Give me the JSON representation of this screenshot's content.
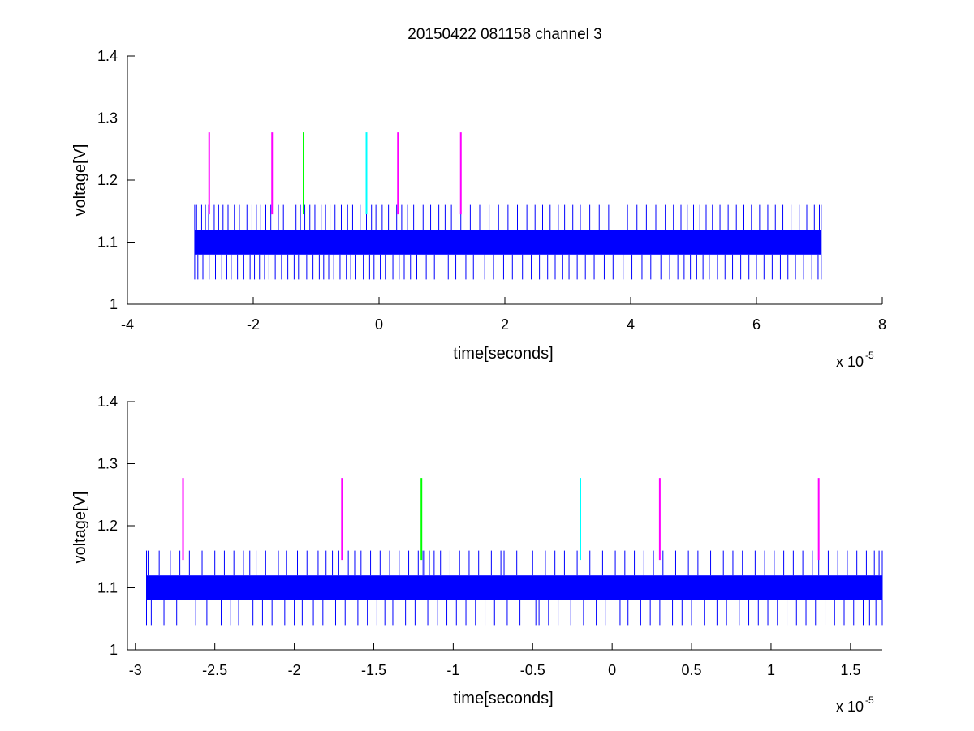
{
  "figure": {
    "background": "#ffffff"
  },
  "chart_data": [
    {
      "type": "line",
      "title": "20150422 081158 channel 3",
      "xlabel": "time[seconds]",
      "ylabel": "voltage[V]",
      "x_multiplier_label": "x 10",
      "x_multiplier_exponent": "-5",
      "xlim": [
        -4,
        8
      ],
      "ylim": [
        1,
        1.4
      ],
      "x_ticks": [
        -4,
        -2,
        0,
        2,
        4,
        6,
        8
      ],
      "x_tick_labels": [
        "-4",
        "-2",
        "0",
        "2",
        "4",
        "6",
        "8"
      ],
      "y_ticks": [
        1,
        1.1,
        1.2,
        1.3,
        1.4
      ],
      "y_tick_labels": [
        "1",
        "1.1",
        "1.2",
        "1.3",
        "1.4"
      ],
      "grid": false,
      "signal": {
        "color": "#0000ff",
        "x_range": [
          -2.93,
          7.03
        ],
        "band": [
          1.08,
          1.12
        ],
        "spike_high": 1.16,
        "spike_low": 1.04,
        "spike_up_x": [
          -2.9,
          -2.82,
          -2.76,
          -2.71,
          -2.62,
          -2.55,
          -2.48,
          -2.4,
          -2.3,
          -2.22,
          -2.1,
          -2.02,
          -1.95,
          -1.88,
          -1.8,
          -1.72,
          -1.6,
          -1.52,
          -1.4,
          -1.32,
          -1.25,
          -1.18,
          -1.1,
          -1.02,
          -0.92,
          -0.85,
          -0.78,
          -0.7,
          -0.6,
          -0.5,
          -0.42,
          -0.3,
          -0.2,
          -0.12,
          -0.05,
          0.05,
          0.15,
          0.28,
          0.36,
          0.45,
          0.55,
          0.7,
          0.82,
          0.95,
          1.05,
          1.15,
          1.3,
          1.45,
          1.6,
          1.75,
          1.9,
          2.05,
          2.2,
          2.35,
          2.48,
          2.6,
          2.72,
          2.85,
          2.95,
          3.08,
          3.2,
          3.35,
          3.5,
          3.65,
          3.8,
          3.95,
          4.1,
          4.25,
          4.4,
          4.55,
          4.68,
          4.8,
          4.9,
          5.0,
          5.1,
          5.2,
          5.3,
          5.42,
          5.55,
          5.68,
          5.8,
          5.92,
          6.05,
          6.18,
          6.3,
          6.42,
          6.55,
          6.68,
          6.8,
          6.92,
          7.0
        ],
        "spike_down_x": [
          -2.88,
          -2.8,
          -2.7,
          -2.6,
          -2.5,
          -2.42,
          -2.35,
          -2.25,
          -2.15,
          -2.05,
          -1.98,
          -1.9,
          -1.82,
          -1.75,
          -1.65,
          -1.55,
          -1.45,
          -1.35,
          -1.28,
          -1.15,
          -1.05,
          -0.95,
          -0.88,
          -0.8,
          -0.72,
          -0.62,
          -0.52,
          -0.45,
          -0.38,
          -0.25,
          -0.15,
          -0.08,
          0.02,
          0.1,
          0.22,
          0.32,
          0.4,
          0.5,
          0.6,
          0.75,
          0.88,
          1.0,
          1.1,
          1.22,
          1.38,
          1.5,
          1.68,
          1.82,
          1.98,
          2.12,
          2.28,
          2.42,
          2.55,
          2.68,
          2.8,
          2.92,
          3.02,
          3.15,
          3.28,
          3.42,
          3.58,
          3.72,
          3.88,
          4.02,
          4.18,
          4.32,
          4.48,
          4.62,
          4.75,
          4.85,
          4.95,
          5.05,
          5.15,
          5.25,
          5.38,
          5.5,
          5.62,
          5.75,
          5.88,
          6.0,
          6.12,
          6.25,
          6.38,
          6.5,
          6.62,
          6.75,
          6.88,
          6.98
        ]
      },
      "markers": [
        {
          "x": -2.7,
          "color": "#ff00ff",
          "y": [
            1.145,
            1.277
          ]
        },
        {
          "x": -1.7,
          "color": "#ff00ff",
          "y": [
            1.145,
            1.277
          ]
        },
        {
          "x": -1.2,
          "color": "#00ff00",
          "y": [
            1.145,
            1.277
          ]
        },
        {
          "x": -0.2,
          "color": "#00ffff",
          "y": [
            1.145,
            1.277
          ]
        },
        {
          "x": 0.3,
          "color": "#ff00ff",
          "y": [
            1.145,
            1.277
          ]
        },
        {
          "x": 1.3,
          "color": "#ff00ff",
          "y": [
            1.145,
            1.277
          ]
        }
      ]
    },
    {
      "type": "line",
      "title": "",
      "xlabel": "time[seconds]",
      "ylabel": "voltage[V]",
      "x_multiplier_label": "x 10",
      "x_multiplier_exponent": "-5",
      "xlim": [
        -3.05,
        1.7
      ],
      "ylim": [
        1,
        1.4
      ],
      "x_ticks": [
        -3,
        -2.5,
        -2,
        -1.5,
        -1,
        -0.5,
        0,
        0.5,
        1,
        1.5
      ],
      "x_tick_labels": [
        "-3",
        "-2.5",
        "-2",
        "-1.5",
        "-1",
        "-0.5",
        "0",
        "0.5",
        "1",
        "1.5"
      ],
      "y_ticks": [
        1,
        1.1,
        1.2,
        1.3,
        1.4
      ],
      "y_tick_labels": [
        "1",
        "1.1",
        "1.2",
        "1.3",
        "1.4"
      ],
      "grid": false,
      "signal": {
        "color": "#0000ff",
        "x_range": [
          -2.93,
          1.7
        ],
        "band": [
          1.08,
          1.12
        ],
        "spike_high": 1.16,
        "spike_low": 1.04,
        "spike_up_x": [
          -2.92,
          -2.85,
          -2.78,
          -2.72,
          -2.66,
          -2.58,
          -2.5,
          -2.44,
          -2.38,
          -2.32,
          -2.28,
          -2.24,
          -2.18,
          -2.1,
          -2.05,
          -1.98,
          -1.92,
          -1.85,
          -1.8,
          -1.76,
          -1.72,
          -1.66,
          -1.62,
          -1.58,
          -1.52,
          -1.46,
          -1.4,
          -1.34,
          -1.28,
          -1.22,
          -1.19,
          -1.18,
          -1.15,
          -1.12,
          -1.08,
          -1.02,
          -0.96,
          -0.9,
          -0.84,
          -0.76,
          -0.7,
          -0.68,
          -0.6,
          -0.5,
          -0.42,
          -0.36,
          -0.3,
          -0.22,
          -0.14,
          -0.06,
          0.02,
          0.08,
          0.14,
          0.2,
          0.26,
          0.32,
          0.4,
          0.48,
          0.54,
          0.62,
          0.7,
          0.76,
          0.82,
          0.9,
          0.96,
          1.02,
          1.08,
          1.14,
          1.2,
          1.26,
          1.3,
          1.36,
          1.42,
          1.48,
          1.54,
          1.6,
          1.65,
          1.68
        ],
        "spike_down_x": [
          -2.9,
          -2.82,
          -2.74,
          -2.62,
          -2.55,
          -2.46,
          -2.4,
          -2.35,
          -2.26,
          -2.2,
          -2.14,
          -2.06,
          -2.0,
          -1.95,
          -1.88,
          -1.82,
          -1.74,
          -1.68,
          -1.6,
          -1.54,
          -1.48,
          -1.43,
          -1.38,
          -1.3,
          -1.24,
          -1.16,
          -1.1,
          -1.04,
          -0.98,
          -0.92,
          -0.86,
          -0.8,
          -0.74,
          -0.66,
          -0.58,
          -0.48,
          -0.46,
          -0.4,
          -0.34,
          -0.26,
          -0.18,
          -0.1,
          -0.04,
          0.05,
          0.1,
          0.18,
          0.24,
          0.3,
          0.38,
          0.44,
          0.5,
          0.58,
          0.66,
          0.72,
          0.8,
          0.86,
          0.92,
          0.98,
          1.04,
          1.1,
          1.16,
          1.22,
          1.28,
          1.34,
          1.4,
          1.46,
          1.52,
          1.58,
          1.62,
          1.66
        ]
      },
      "markers": [
        {
          "x": -2.7,
          "color": "#ff00ff",
          "y": [
            1.145,
            1.277
          ]
        },
        {
          "x": -1.7,
          "color": "#ff00ff",
          "y": [
            1.145,
            1.277
          ]
        },
        {
          "x": -1.2,
          "color": "#00ff00",
          "y": [
            1.145,
            1.277
          ]
        },
        {
          "x": -0.2,
          "color": "#00ffff",
          "y": [
            1.145,
            1.277
          ]
        },
        {
          "x": 0.3,
          "color": "#ff00ff",
          "y": [
            1.145,
            1.277
          ]
        },
        {
          "x": 1.3,
          "color": "#ff00ff",
          "y": [
            1.145,
            1.277
          ]
        }
      ]
    }
  ]
}
